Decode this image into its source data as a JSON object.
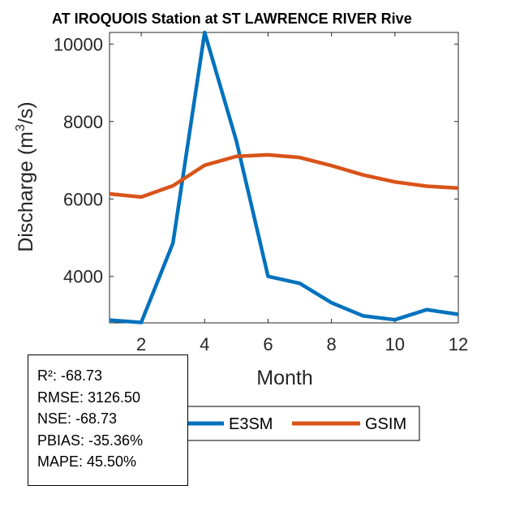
{
  "chart_data": {
    "type": "line",
    "title": "AT IROQUOIS  Station at  ST LAWRENCE RIVER  Rive",
    "xlabel": "Month",
    "ylabel_main": "Discharge (m",
    "ylabel_sup": "3",
    "ylabel_end": "/s)",
    "xlim": [
      1,
      12
    ],
    "ylim": [
      2800,
      10300
    ],
    "x": [
      1,
      2,
      3,
      4,
      5,
      6,
      7,
      8,
      9,
      10,
      11,
      12
    ],
    "xticks": [
      2,
      4,
      6,
      8,
      10,
      12
    ],
    "yticks": [
      4000,
      6000,
      8000,
      10000
    ],
    "series": [
      {
        "name": "E3SM",
        "color": "#0072BD",
        "values": [
          2870,
          2810,
          4860,
          10300,
          7500,
          4000,
          3820,
          3320,
          2980,
          2880,
          3140,
          3020
        ]
      },
      {
        "name": "GSIM",
        "color": "#D95319",
        "values": [
          6130,
          6050,
          6340,
          6870,
          7100,
          7140,
          7070,
          6860,
          6620,
          6440,
          6330,
          6280
        ]
      }
    ],
    "legend": {
      "placement": "bottom-center",
      "entries": [
        "E3SM",
        "GSIM"
      ]
    }
  },
  "stats": [
    "R²: -68.73",
    "RMSE: 3126.50",
    "NSE: -68.73",
    "PBIAS: -35.36%",
    "MAPE: 45.50%"
  ]
}
